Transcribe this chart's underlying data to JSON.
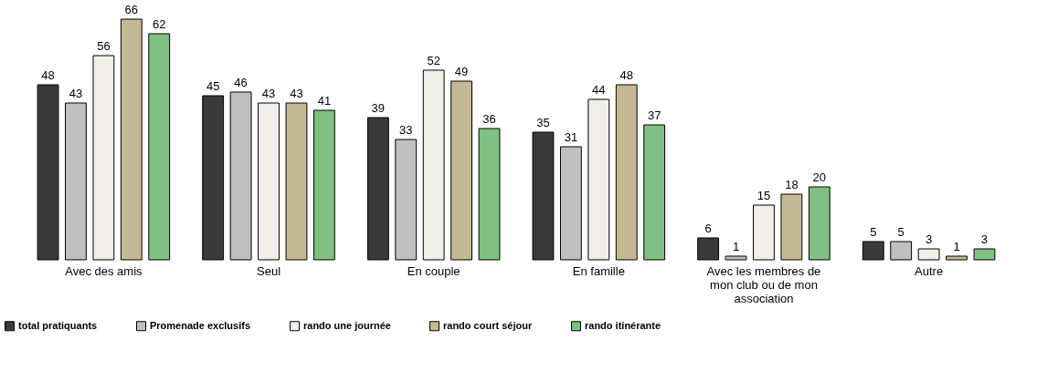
{
  "chart_data": {
    "type": "bar",
    "categories": [
      "Avec des amis",
      "Seul",
      "En couple",
      "En famille",
      "Avec les membres de mon club ou de mon association",
      "Autre"
    ],
    "series": [
      {
        "name": "total pratiquants",
        "color": "#3a3a3a",
        "values": [
          48,
          45,
          39,
          35,
          6,
          5
        ]
      },
      {
        "name": "Promenade exclusifs",
        "color": "#c0c0c0",
        "values": [
          43,
          46,
          33,
          31,
          1,
          5
        ]
      },
      {
        "name": "rando une journée",
        "color": "#f1eee7",
        "values": [
          56,
          43,
          52,
          44,
          15,
          3
        ]
      },
      {
        "name": "rando court séjour",
        "color": "#c4b993",
        "values": [
          66,
          43,
          49,
          48,
          18,
          1
        ]
      },
      {
        "name": "rando itinérante",
        "color": "#80c080",
        "values": [
          62,
          41,
          36,
          37,
          20,
          3
        ]
      }
    ],
    "data_labels": true,
    "legend": "bottom",
    "grid": false
  }
}
